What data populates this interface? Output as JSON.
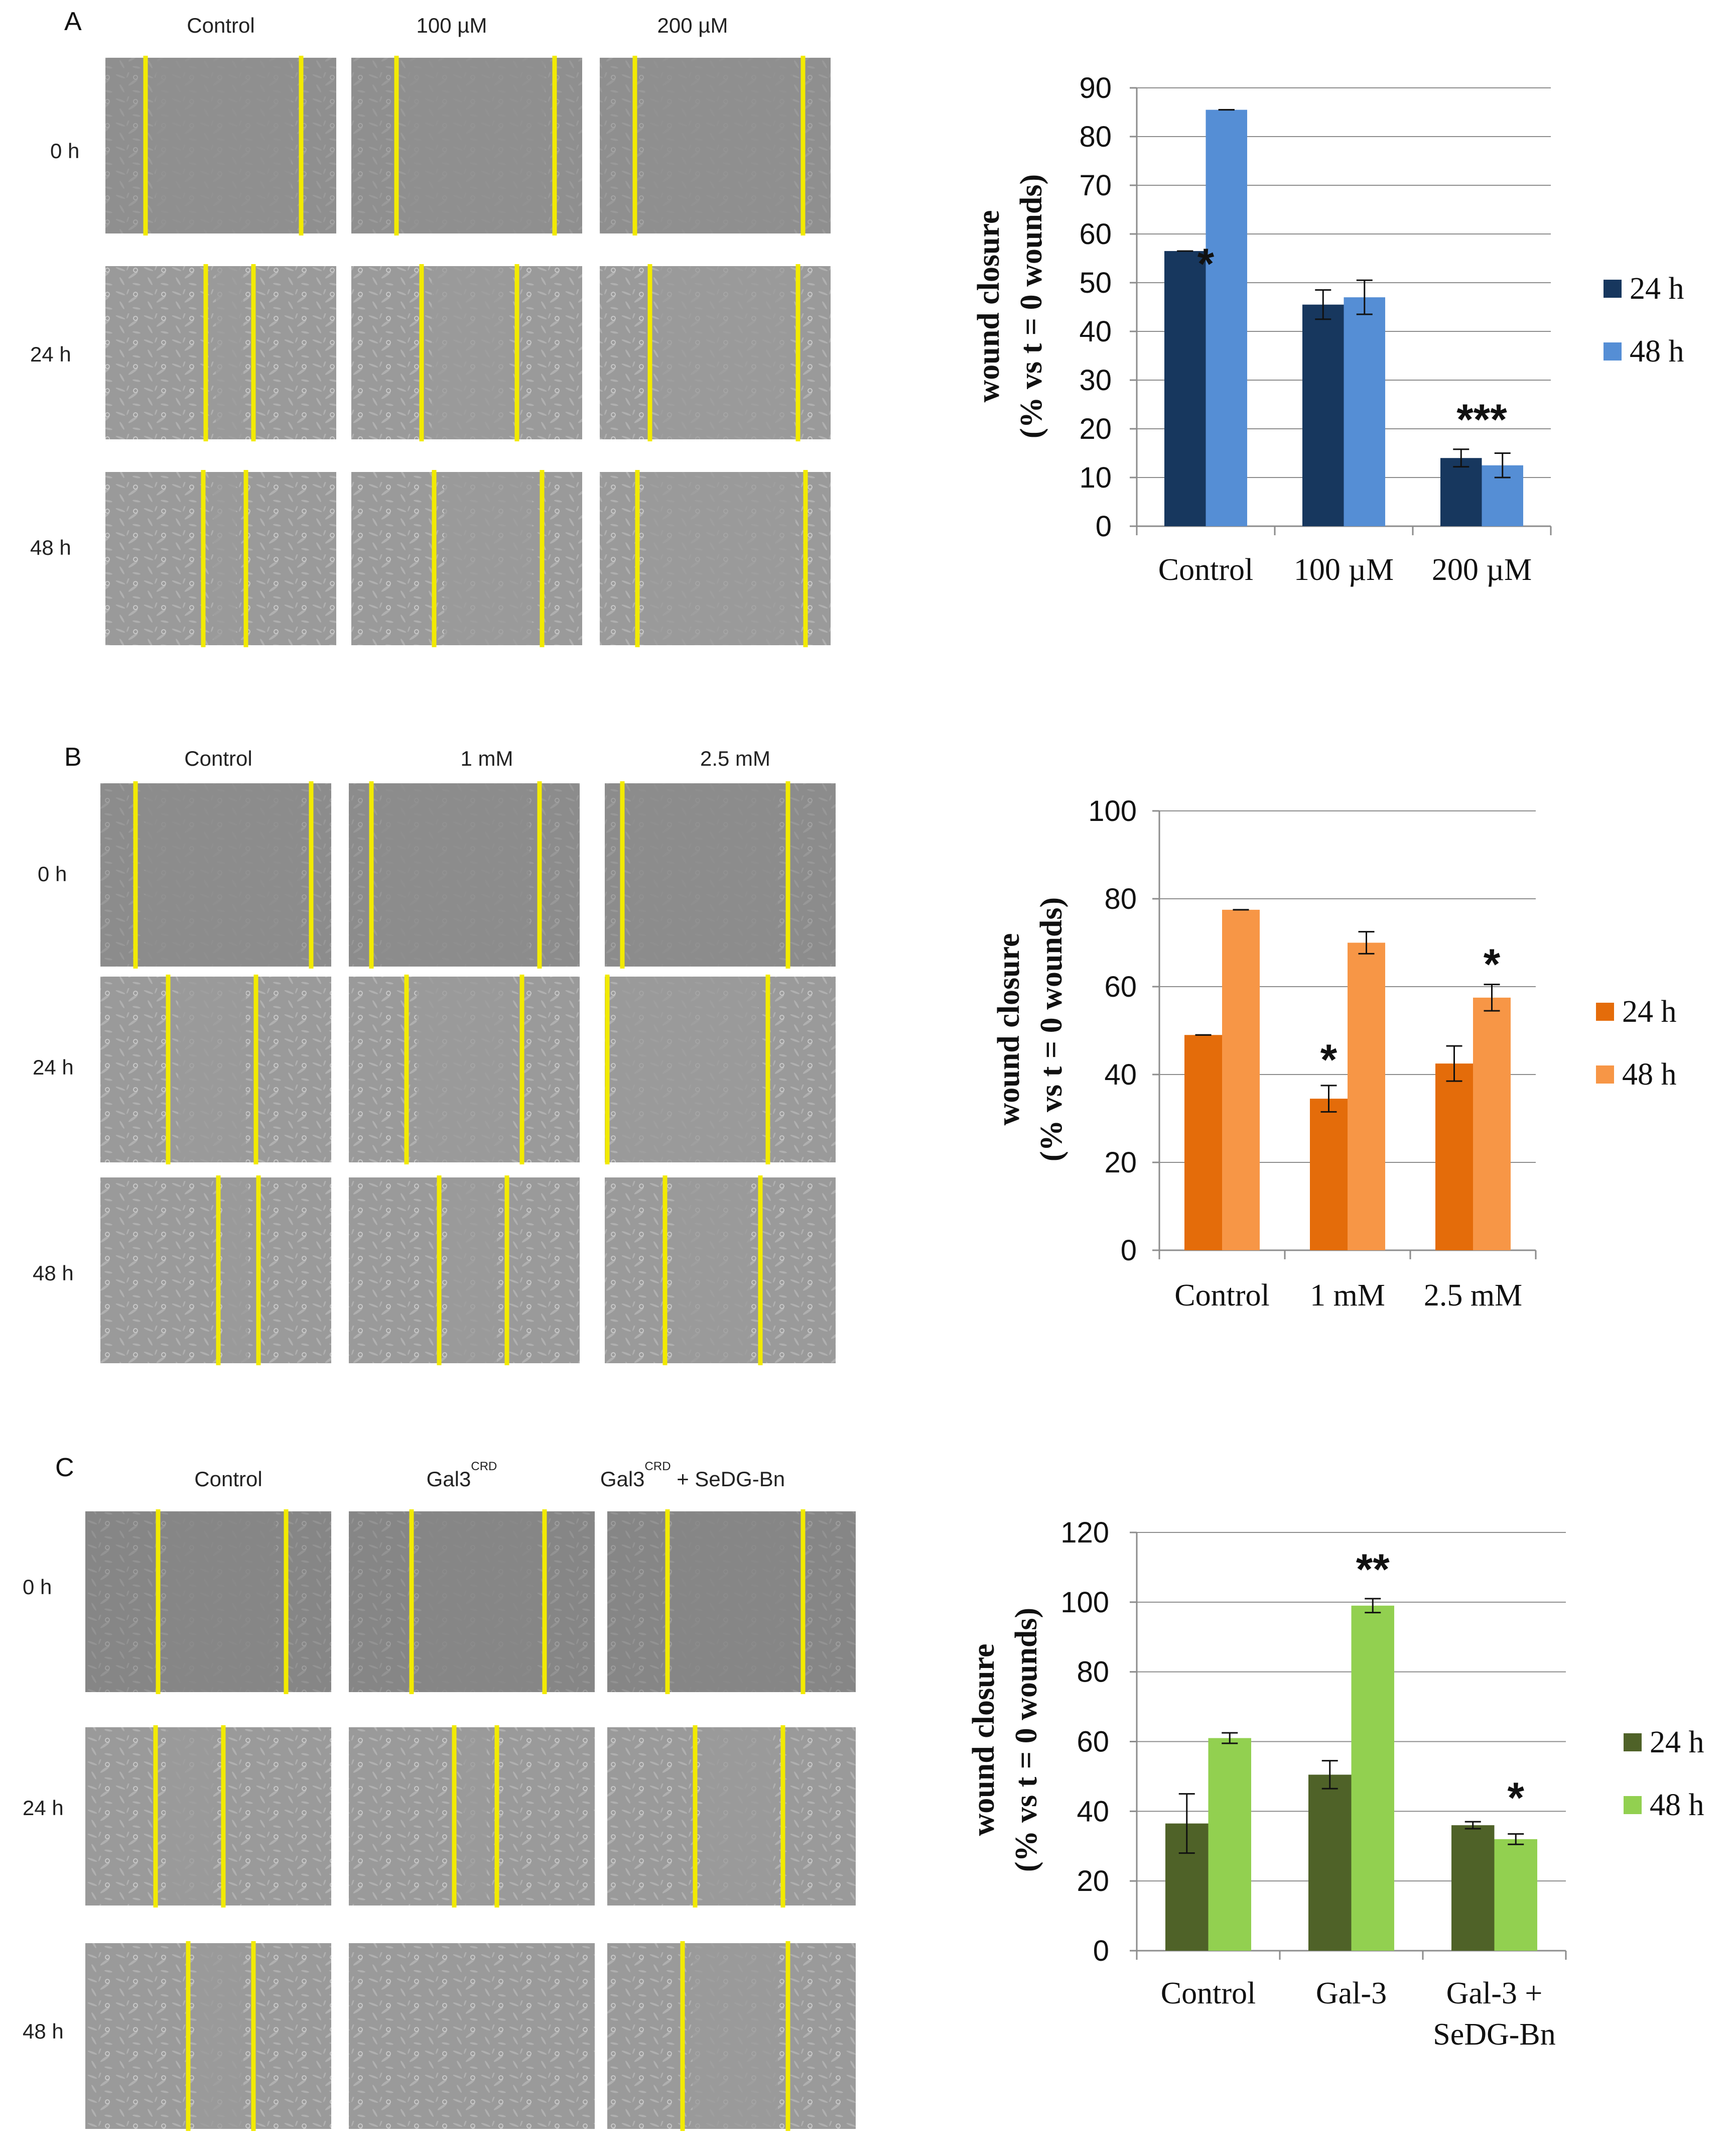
{
  "figure": {
    "panels": [
      {
        "label": "A",
        "conditions": [
          "Control",
          "100 µM",
          "200 µM"
        ],
        "timepoints": [
          "0  h",
          "24 h",
          "48 h"
        ],
        "tone": "#8f8f8f",
        "line_color": "#f2ea00"
      },
      {
        "label": "B",
        "conditions": [
          "Control",
          "1 mM",
          "2.5 mM"
        ],
        "timepoints": [
          "0 h",
          "24 h",
          "48 h"
        ],
        "tone": "#8c8c8c",
        "line_color": "#f2ea00"
      },
      {
        "label": "C",
        "conditions": [
          "Control",
          "Gal3",
          "Gal3"
        ],
        "superscripts": [
          "",
          "CRD",
          "CRD"
        ],
        "suffixes": [
          "",
          "",
          " + SeDG-Bn"
        ],
        "timepoints": [
          "0 h",
          "24 h",
          "48 h"
        ],
        "tone": "#868686",
        "line_color": "#f2ea00"
      }
    ]
  },
  "chart_data": [
    {
      "type": "bar",
      "panel": "A",
      "categories": [
        "Control",
        "100 µM",
        "200 µM"
      ],
      "series": [
        {
          "name": "24 h",
          "values": [
            56.5,
            45.5,
            14
          ],
          "errors": [
            0,
            3,
            1.8
          ],
          "color": "#17375e"
        },
        {
          "name": "48 h",
          "values": [
            85.5,
            47,
            12.5
          ],
          "errors": [
            0,
            3.5,
            2.5
          ],
          "color": "#558ed5"
        }
      ],
      "annotations": [
        "*",
        "",
        "***"
      ],
      "ylabel_line1": "wound closure",
      "ylabel_line2": "(% vs t = 0 wounds)",
      "ylim": [
        0,
        90
      ],
      "yticks": [
        0,
        10,
        20,
        30,
        40,
        50,
        60,
        70,
        80,
        90
      ],
      "grid": true,
      "legend": "right"
    },
    {
      "type": "bar",
      "panel": "B",
      "categories": [
        "Control",
        "1 mM",
        "2.5 mM"
      ],
      "series": [
        {
          "name": "24 h",
          "values": [
            49,
            34.5,
            42.5
          ],
          "errors": [
            0,
            3,
            4
          ],
          "color": "#e46c0a"
        },
        {
          "name": "48 h",
          "values": [
            77.5,
            70,
            57.5
          ],
          "errors": [
            0,
            2.5,
            3
          ],
          "color": "#f79646"
        }
      ],
      "annotations": [
        "",
        "*",
        "*"
      ],
      "ylabel_line1": "wound closure",
      "ylabel_line2": "(% vs t = 0 wounds)",
      "ylim": [
        0,
        100
      ],
      "yticks": [
        0,
        20,
        40,
        60,
        80,
        100
      ],
      "grid": true,
      "legend": "right"
    },
    {
      "type": "bar",
      "panel": "C",
      "categories": [
        "Control",
        "Gal-3",
        "Gal-3 + SeDG-Bn"
      ],
      "category_lines": [
        [
          "Control"
        ],
        [
          "Gal-3"
        ],
        [
          "Gal-3 +",
          "SeDG-Bn"
        ]
      ],
      "series": [
        {
          "name": "24 h",
          "values": [
            36.5,
            50.5,
            36
          ],
          "errors": [
            8.5,
            4,
            1
          ],
          "color": "#4f6228"
        },
        {
          "name": "48 h",
          "values": [
            61,
            99,
            32
          ],
          "errors": [
            1.5,
            2,
            1.5
          ],
          "color": "#92d050"
        }
      ],
      "annotations": [
        "",
        "**",
        "*"
      ],
      "ylabel_line1": "wound closure",
      "ylabel_line2": "(% vs t = 0 wounds)",
      "ylim": [
        0,
        120
      ],
      "yticks": [
        0,
        20,
        40,
        60,
        80,
        100,
        120
      ],
      "grid": true,
      "legend": "right"
    }
  ]
}
